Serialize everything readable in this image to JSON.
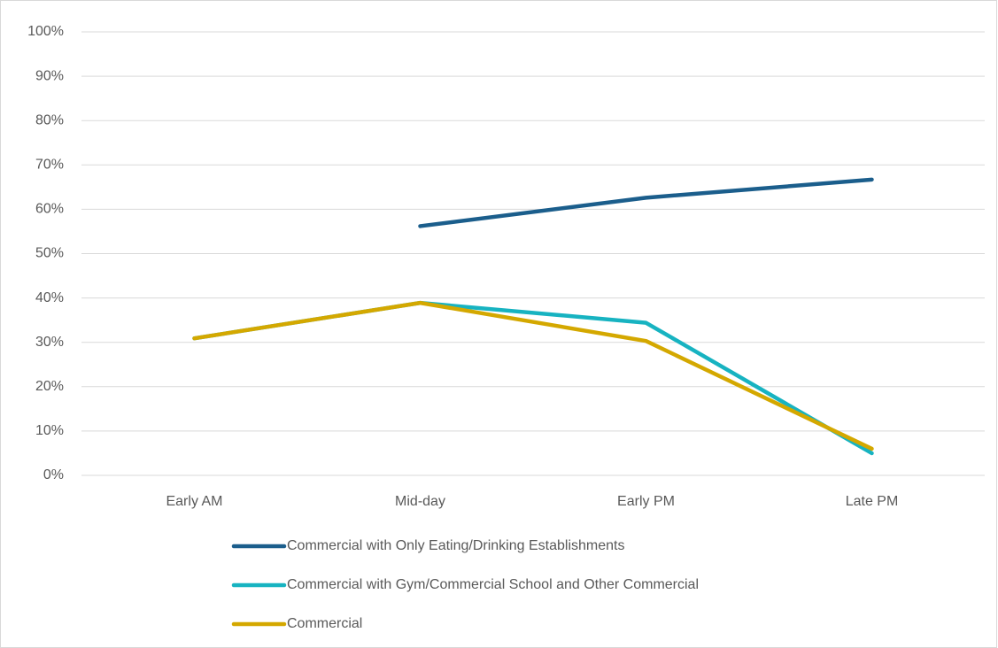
{
  "chart_data": {
    "type": "line",
    "categories": [
      "Early AM",
      "Mid-day",
      "Early PM",
      "Late PM"
    ],
    "series": [
      {
        "name": "Commercial with Only Eating/Drinking Establishments",
        "color": "#1b5e8c",
        "values": [
          null,
          56.2,
          62.6,
          66.7
        ]
      },
      {
        "name": "Commercial with Gym/Commercial School and Other Commercial",
        "color": "#17b3c1",
        "values": [
          30.9,
          38.9,
          34.4,
          5.0
        ]
      },
      {
        "name": "Commercial",
        "color": "#d4a800",
        "values": [
          30.9,
          38.9,
          30.3,
          6.0
        ]
      }
    ],
    "ylim": [
      0,
      100
    ],
    "yticks": [
      {
        "value": 0,
        "label": "0%"
      },
      {
        "value": 10,
        "label": "10%"
      },
      {
        "value": 20,
        "label": "20%"
      },
      {
        "value": 30,
        "label": "30%"
      },
      {
        "value": 40,
        "label": "40%"
      },
      {
        "value": 50,
        "label": "50%"
      },
      {
        "value": 60,
        "label": "60%"
      },
      {
        "value": 70,
        "label": "70%"
      },
      {
        "value": 80,
        "label": "80%"
      },
      {
        "value": 90,
        "label": "90%"
      },
      {
        "value": 100,
        "label": "100%"
      }
    ],
    "grid": true
  }
}
